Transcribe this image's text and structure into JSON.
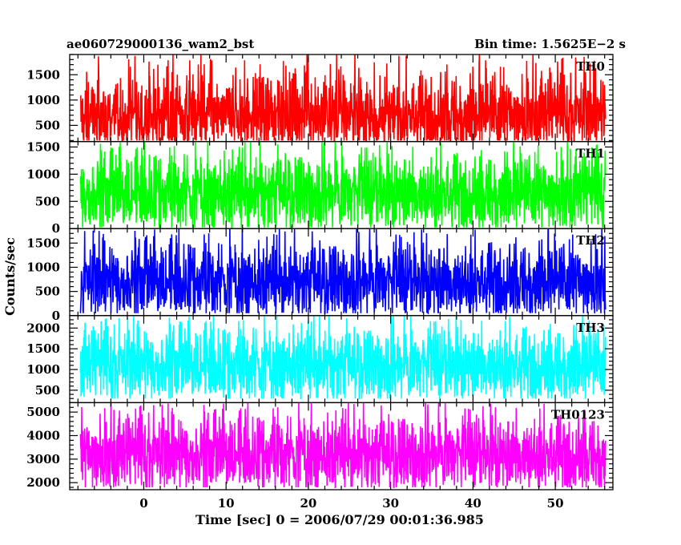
{
  "header": {
    "title": "ae060729000136_wam2_bst",
    "bin_time": "Bin time: 1.5625E−2 s"
  },
  "chart_data": {
    "type": "line",
    "title": "ae060729000136_wam2_bst",
    "xlabel": "Time [sec] 0 = 2006/07/29 00:01:36.985",
    "ylabel": "Counts/sec",
    "xlim": [
      -9,
      57
    ],
    "x_ticks": [
      0,
      10,
      20,
      30,
      40,
      50
    ],
    "data_x_range": [
      -7.7,
      56.1
    ],
    "grid": false,
    "panels": [
      {
        "name": "TH0",
        "color": "#ff0000",
        "ylim": [
          180,
          1900
        ],
        "yticks": [
          500,
          1000,
          1500
        ],
        "baseline": 700,
        "low": 200,
        "high": 1900
      },
      {
        "name": "TH1",
        "color": "#00ff00",
        "ylim": [
          0,
          1600
        ],
        "yticks": [
          0,
          500,
          1000,
          1500
        ],
        "baseline": 650,
        "low": 20,
        "high": 1600
      },
      {
        "name": "TH2",
        "color": "#0000ff",
        "ylim": [
          0,
          1800
        ],
        "yticks": [
          0,
          500,
          1000,
          1500
        ],
        "baseline": 700,
        "low": 50,
        "high": 1800
      },
      {
        "name": "TH3",
        "color": "#00ffff",
        "ylim": [
          200,
          2300
        ],
        "yticks": [
          500,
          1000,
          1500,
          2000
        ],
        "baseline": 1100,
        "low": 300,
        "high": 2300
      },
      {
        "name": "TH0123",
        "color": "#ff00ff",
        "ylim": [
          1700,
          5400
        ],
        "yticks": [
          2000,
          3000,
          4000,
          5000
        ],
        "baseline": 3200,
        "low": 1800,
        "high": 5400
      }
    ]
  }
}
